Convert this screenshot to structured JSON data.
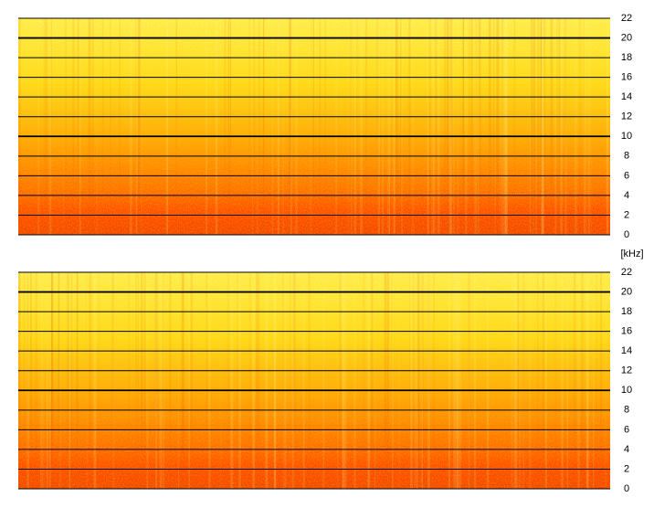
{
  "chart_data": [
    {
      "type": "spectrogram",
      "ylim": [
        0,
        22
      ],
      "yticks": [
        0,
        2,
        4,
        6,
        8,
        10,
        12,
        14,
        16,
        18,
        20,
        22
      ],
      "grid": true
    },
    {
      "type": "spectrogram",
      "ylabel": "[kHz]",
      "ylim": [
        0,
        22
      ],
      "yticks": [
        0,
        2,
        4,
        6,
        8,
        10,
        12,
        14,
        16,
        18,
        20,
        22
      ],
      "grid": true
    }
  ]
}
